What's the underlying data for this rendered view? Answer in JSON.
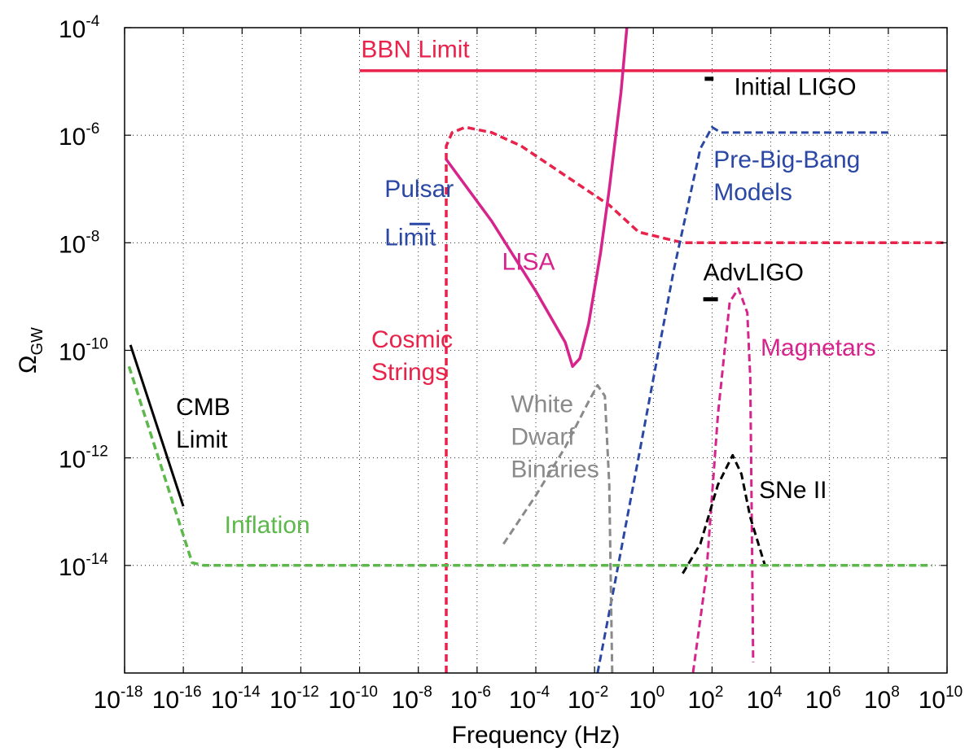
{
  "chart_data": {
    "type": "line",
    "title": "",
    "xlabel": "Frequency (Hz)",
    "ylabel_main": "Ω",
    "ylabel_sub": "GW",
    "x_scale": "log",
    "y_scale": "log",
    "xlim_exp": [
      -18,
      10
    ],
    "ylim_exp": [
      -16,
      -4
    ],
    "x_ticks": [
      {
        "base": "10",
        "exp": "-18",
        "e": -18
      },
      {
        "base": "10",
        "exp": "-16",
        "e": -16
      },
      {
        "base": "10",
        "exp": "-14",
        "e": -14
      },
      {
        "base": "10",
        "exp": "-12",
        "e": -12
      },
      {
        "base": "10",
        "exp": "-10",
        "e": -10
      },
      {
        "base": "10",
        "exp": "-8",
        "e": -8
      },
      {
        "base": "10",
        "exp": "-6",
        "e": -6
      },
      {
        "base": "10",
        "exp": "-4",
        "e": -4
      },
      {
        "base": "10",
        "exp": "-2",
        "e": -2
      },
      {
        "base": "10",
        "exp": "0",
        "e": 0
      },
      {
        "base": "10",
        "exp": "2",
        "e": 2
      },
      {
        "base": "10",
        "exp": "4",
        "e": 4
      },
      {
        "base": "10",
        "exp": "6",
        "e": 6
      },
      {
        "base": "10",
        "exp": "8",
        "e": 8
      },
      {
        "base": "10",
        "exp": "10",
        "e": 10
      }
    ],
    "y_ticks": [
      {
        "base": "10",
        "exp": "-14",
        "e": -14
      },
      {
        "base": "10",
        "exp": "-12",
        "e": -12
      },
      {
        "base": "10",
        "exp": "-10",
        "e": -10
      },
      {
        "base": "10",
        "exp": "-8",
        "e": -8
      },
      {
        "base": "10",
        "exp": "-6",
        "e": -6
      },
      {
        "base": "10",
        "exp": "-4",
        "e": -4
      }
    ],
    "grid": "dotted",
    "series": [
      {
        "name": "BBN Limit",
        "color": "#e8224a",
        "dash": "solid",
        "width": 3.5,
        "points": [
          [
            -10,
            -4.8
          ],
          [
            10,
            -4.8
          ]
        ]
      },
      {
        "name": "Cosmic Strings",
        "color": "#e8224a",
        "dash": "dashed",
        "width": 3.5,
        "points": [
          [
            -7.05,
            -16
          ],
          [
            -7.05,
            -6.2
          ],
          [
            -6.85,
            -5.95
          ],
          [
            -6.4,
            -5.85
          ],
          [
            -5.5,
            -5.95
          ],
          [
            -4.5,
            -6.2
          ],
          [
            -3,
            -6.75
          ],
          [
            -1.5,
            -7.3
          ],
          [
            -0.5,
            -7.8
          ],
          [
            1,
            -8
          ],
          [
            10,
            -8
          ]
        ]
      },
      {
        "name": "LISA",
        "color": "#d6248c",
        "dash": "solid",
        "width": 3.5,
        "points": [
          [
            -7.05,
            -6.45
          ],
          [
            -5.5,
            -7.6
          ],
          [
            -4,
            -8.9
          ],
          [
            -3,
            -9.85
          ],
          [
            -2.75,
            -10.3
          ],
          [
            -2.5,
            -10.15
          ],
          [
            -2.2,
            -9.5
          ],
          [
            -1.8,
            -8.2
          ],
          [
            -1.5,
            -7.0
          ],
          [
            -1.1,
            -5.2
          ],
          [
            -0.9,
            -4
          ]
        ]
      },
      {
        "name": "Pulsar Limit",
        "color": "#2a47a6",
        "dash": "solid",
        "width": 3,
        "points": [
          [
            -8.3,
            -7.65
          ],
          [
            -7.6,
            -7.65
          ]
        ]
      },
      {
        "name": "Pre-Big-Bang Models",
        "color": "#2a47a6",
        "dash": "dashed",
        "width": 3,
        "points": [
          [
            -1.9,
            -16
          ],
          [
            -1.3,
            -14.3
          ],
          [
            -0.3,
            -11.4
          ],
          [
            0.7,
            -8.5
          ],
          [
            1.3,
            -7
          ],
          [
            1.6,
            -6.25
          ],
          [
            2,
            -5.85
          ],
          [
            2.3,
            -5.95
          ],
          [
            4,
            -5.95
          ],
          [
            8,
            -5.95
          ]
        ]
      },
      {
        "name": "Initial LIGO",
        "color": "#000000",
        "dash": "solid",
        "width": 5,
        "points": [
          [
            1.75,
            -4.95
          ],
          [
            2.05,
            -4.95
          ]
        ]
      },
      {
        "name": "AdvLIGO",
        "color": "#000000",
        "dash": "solid",
        "width": 5,
        "points": [
          [
            1.7,
            -9.05
          ],
          [
            2.2,
            -9.05
          ]
        ]
      },
      {
        "name": "Magnetars",
        "color": "#d6248c",
        "dash": "dashed",
        "width": 3,
        "points": [
          [
            1.3,
            -16.2
          ],
          [
            1.8,
            -14.2
          ],
          [
            2.2,
            -11.2
          ],
          [
            2.6,
            -9.1
          ],
          [
            2.9,
            -8.85
          ],
          [
            3.2,
            -9.3
          ],
          [
            3.3,
            -10.5
          ],
          [
            3.35,
            -13
          ],
          [
            3.4,
            -15.8
          ]
        ]
      },
      {
        "name": "SNe II",
        "color": "#000000",
        "dash": "dashed",
        "width": 3,
        "points": [
          [
            1.0,
            -14.15
          ],
          [
            1.6,
            -13.6
          ],
          [
            2.2,
            -12.5
          ],
          [
            2.7,
            -11.95
          ],
          [
            3.0,
            -12.3
          ],
          [
            3.3,
            -13.1
          ],
          [
            3.8,
            -14
          ]
        ]
      },
      {
        "name": "White Dwarf Binaries",
        "color": "#8a8a8a",
        "dash": "dashed",
        "width": 3,
        "points": [
          [
            -5.1,
            -13.6
          ],
          [
            -4,
            -12.7
          ],
          [
            -3,
            -11.8
          ],
          [
            -2.2,
            -10.95
          ],
          [
            -1.9,
            -10.65
          ],
          [
            -1.65,
            -10.85
          ],
          [
            -1.5,
            -12.5
          ],
          [
            -1.4,
            -16
          ]
        ]
      },
      {
        "name": "CMB Limit",
        "color": "#000000",
        "dash": "solid",
        "width": 3,
        "points": [
          [
            -17.8,
            -9.9
          ],
          [
            -16,
            -12.9
          ]
        ]
      },
      {
        "name": "Inflation",
        "color": "#5cb84a",
        "dash": "dashed",
        "width": 3.5,
        "points": [
          [
            -17.85,
            -10.3
          ],
          [
            -15.7,
            -13.95
          ],
          [
            -15.3,
            -14
          ],
          [
            9.5,
            -14
          ]
        ]
      }
    ],
    "annotations": [
      {
        "lines": [
          "BBN Limit"
        ],
        "color": "#e8224a",
        "x": -9.95,
        "y": -4.55,
        "anchor": "start"
      },
      {
        "lines": [
          "Initial LIGO"
        ],
        "color": "#000000",
        "x": 2.75,
        "y": -5.25,
        "anchor": "start"
      },
      {
        "lines": [
          "Pre-Big-Bang",
          "Models"
        ],
        "color": "#2a47a6",
        "x": 2.05,
        "y": -6.6,
        "anchor": "start"
      },
      {
        "lines": [
          "Pulsar"
        ],
        "color": "#2a47a6",
        "x": -9.15,
        "y": -7.15,
        "anchor": "start"
      },
      {
        "lines": [
          "Limit"
        ],
        "color": "#2a47a6",
        "x": -9.15,
        "y": -8.05,
        "anchor": "start"
      },
      {
        "lines": [
          "LISA"
        ],
        "color": "#d6248c",
        "x": -5.15,
        "y": -8.5,
        "anchor": "start"
      },
      {
        "lines": [
          "AdvLIGO"
        ],
        "color": "#000000",
        "x": 1.7,
        "y": -8.7,
        "anchor": "start"
      },
      {
        "lines": [
          "Cosmic",
          "Strings"
        ],
        "color": "#e8224a",
        "x": -9.6,
        "y": -9.95,
        "anchor": "start"
      },
      {
        "lines": [
          "Magnetars"
        ],
        "color": "#d6248c",
        "x": 3.65,
        "y": -10.1,
        "anchor": "start"
      },
      {
        "lines": [
          "CMB",
          "Limit"
        ],
        "color": "#000000",
        "x": -16.25,
        "y": -11.2,
        "anchor": "start"
      },
      {
        "lines": [
          "White",
          "Dwarf",
          "Binaries"
        ],
        "color": "#8a8a8a",
        "x": -4.85,
        "y": -11.15,
        "anchor": "start"
      },
      {
        "lines": [
          "SNe II"
        ],
        "color": "#000000",
        "x": 3.6,
        "y": -12.75,
        "anchor": "start"
      },
      {
        "lines": [
          "Inflation"
        ],
        "color": "#5cb84a",
        "x": -14.6,
        "y": -13.4,
        "anchor": "start"
      }
    ]
  }
}
